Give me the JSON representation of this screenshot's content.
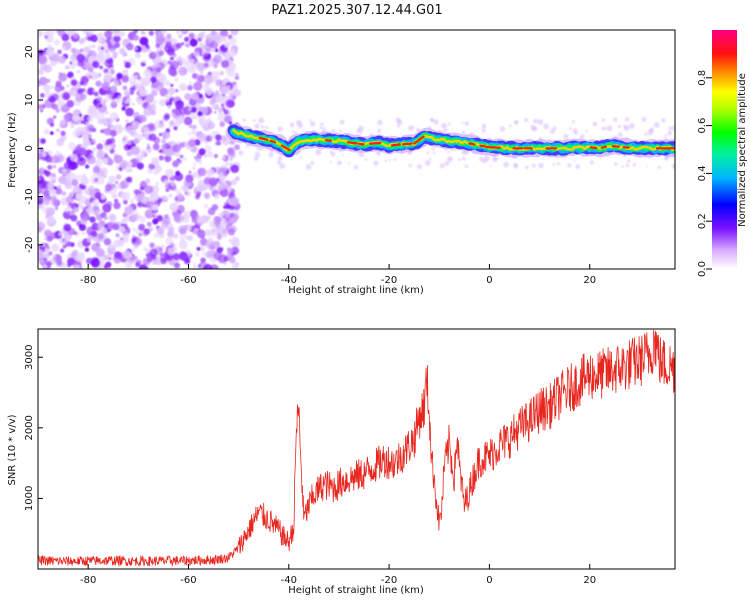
{
  "chart_data": [
    {
      "type": "heatmap",
      "title": "PAZ1.2025.307.12.44.G01",
      "xlabel": "Height of straight line (km)",
      "ylabel": "Frequency (Hz)",
      "xlim": [
        -90,
        37
      ],
      "ylim": [
        -25,
        24.5
      ],
      "xticks": [
        -80,
        -60,
        -40,
        -20,
        0,
        20
      ],
      "xtick_labels": [
        "-80",
        "-60",
        "-40",
        "-20",
        "0",
        "20"
      ],
      "yticks": [
        -20,
        -10,
        0,
        10,
        20
      ],
      "ytick_labels": [
        "-20",
        "-10",
        "0",
        "10",
        "20"
      ],
      "colorbar": {
        "label": "Normalized spectral amplitude",
        "range": [
          0,
          1
        ],
        "ticks": [
          0.0,
          0.2,
          0.4,
          0.6,
          0.8
        ],
        "tick_labels": [
          "0.0",
          "0.2",
          "0.4",
          "0.6",
          "0.8"
        ],
        "colors": [
          "#ffffff",
          "#a040ff",
          "#4000ff",
          "#0040ff",
          "#00c0ff",
          "#00ff80",
          "#40ff00",
          "#ffff00",
          "#ff8000",
          "#ff0000",
          "#ff0080"
        ]
      },
      "noise_region_x": [
        -90,
        -51
      ],
      "ridge": {
        "x": [
          -51,
          -48,
          -45,
          -42,
          -40,
          -38,
          -35,
          -30,
          -25,
          -22,
          -20,
          -18,
          -15,
          -13,
          -11,
          -8,
          -5,
          0,
          5,
          10,
          15,
          20,
          22,
          24,
          27,
          30,
          33,
          37
        ],
        "freq": [
          3.5,
          2.5,
          2.0,
          1.0,
          -0.5,
          1.5,
          1.8,
          1.5,
          0.8,
          1.2,
          0.5,
          0.8,
          1.0,
          2.5,
          2.0,
          1.5,
          1.2,
          0.2,
          0.0,
          0.0,
          0.0,
          0.2,
          0.0,
          0.5,
          0.2,
          0.0,
          0.0,
          0.0
        ]
      }
    },
    {
      "type": "line",
      "title": "",
      "xlabel": "Height of straight line (km)",
      "ylabel": "SNR (10 * v/v)",
      "xlim": [
        -90,
        37
      ],
      "ylim": [
        0,
        3400
      ],
      "xticks": [
        -80,
        -60,
        -40,
        -20,
        0,
        20
      ],
      "xtick_labels": [
        "-80",
        "-60",
        "-40",
        "-20",
        "0",
        "20"
      ],
      "yticks": [
        1000,
        2000,
        3000
      ],
      "ytick_labels": [
        "1000",
        "2000",
        "3000"
      ],
      "color": "#e8261e",
      "series": [
        {
          "name": "SNR",
          "x": [
            -90,
            -85,
            -80,
            -75,
            -70,
            -65,
            -60,
            -55,
            -52,
            -50,
            -48,
            -46,
            -44,
            -42,
            -41,
            -40,
            -39,
            -38.5,
            -38,
            -37.5,
            -37,
            -36,
            -35,
            -33,
            -31,
            -29,
            -27,
            -25,
            -23,
            -21,
            -19,
            -17,
            -16,
            -15,
            -14,
            -13,
            -12.5,
            -12,
            -11.5,
            -11,
            -10.5,
            -10,
            -9.5,
            -9,
            -8.5,
            -8,
            -7.5,
            -7,
            -6.5,
            -6,
            -5,
            -4,
            -3,
            -2,
            0,
            2,
            4,
            6,
            8,
            10,
            12,
            14,
            16,
            18,
            20,
            22,
            24,
            26,
            28,
            30,
            32,
            33,
            34,
            35,
            37
          ],
          "y": [
            120,
            110,
            115,
            120,
            110,
            115,
            120,
            130,
            160,
            300,
            550,
            800,
            700,
            550,
            450,
            380,
            600,
            2000,
            2250,
            1400,
            700,
            900,
            1050,
            1200,
            1150,
            1250,
            1300,
            1350,
            1450,
            1550,
            1500,
            1650,
            1750,
            1850,
            2150,
            2300,
            2700,
            2250,
            1500,
            1300,
            900,
            650,
            850,
            1450,
            1600,
            1800,
            1500,
            1300,
            1900,
            1450,
            900,
            1100,
            1350,
            1550,
            1600,
            1750,
            1850,
            2000,
            2100,
            2250,
            2300,
            2450,
            2550,
            2650,
            2750,
            2750,
            2800,
            2850,
            2900,
            2950,
            3050,
            3250,
            2950,
            2900,
            2850
          ]
        }
      ]
    }
  ]
}
